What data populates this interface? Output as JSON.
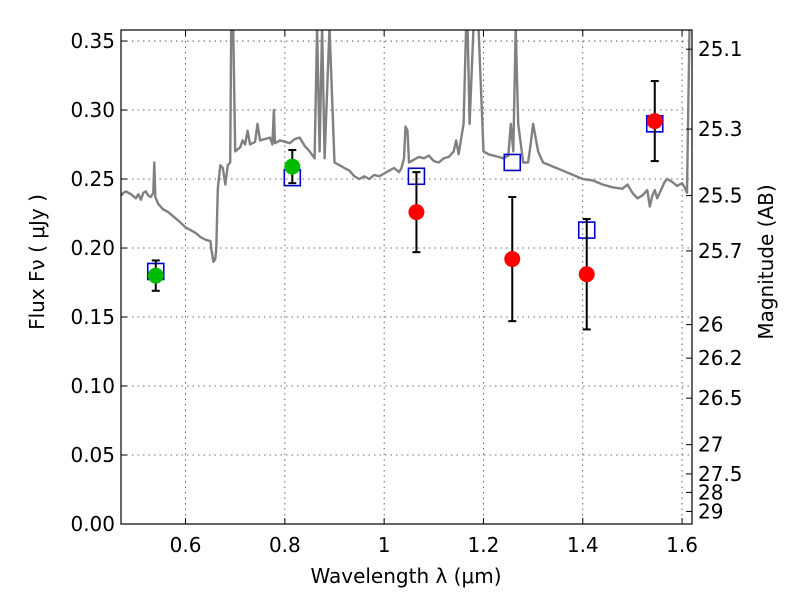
{
  "chart_data": {
    "type": "scatter",
    "xlabel": "Wavelength  λ (μm)",
    "ylabel": "Flux  Fν ( μJy )",
    "ylabel_right": "Magnitude (AB)",
    "xlim": [
      0.47,
      1.62
    ],
    "ylim": [
      0.0,
      0.358
    ],
    "grid": true,
    "x_ticks": [
      {
        "value": 0.6,
        "label": "0.6"
      },
      {
        "value": 0.8,
        "label": "0.8"
      },
      {
        "value": 1.0,
        "label": "1"
      },
      {
        "value": 1.2,
        "label": "1.2"
      },
      {
        "value": 1.4,
        "label": "1.4"
      },
      {
        "value": 1.6,
        "label": "1.6"
      }
    ],
    "y_ticks": [
      {
        "value": 0.0,
        "label": "0.00"
      },
      {
        "value": 0.05,
        "label": "0.05"
      },
      {
        "value": 0.1,
        "label": "0.10"
      },
      {
        "value": 0.15,
        "label": "0.15"
      },
      {
        "value": 0.2,
        "label": "0.20"
      },
      {
        "value": 0.25,
        "label": "0.25"
      },
      {
        "value": 0.3,
        "label": "0.30"
      },
      {
        "value": 0.35,
        "label": "0.35"
      }
    ],
    "right_ticks": [
      {
        "flux": 0.3441,
        "label": "25.1"
      },
      {
        "flux": 0.2862,
        "label": "25.3"
      },
      {
        "flux": 0.238,
        "label": "25.5"
      },
      {
        "flux": 0.1979,
        "label": "25.7"
      },
      {
        "flux": 0.1445,
        "label": "26"
      },
      {
        "flux": 0.1202,
        "label": "26.2"
      },
      {
        "flux": 0.0912,
        "label": "26.5"
      },
      {
        "flux": 0.0575,
        "label": "27"
      },
      {
        "flux": 0.0363,
        "label": "27.5"
      },
      {
        "flux": 0.0229,
        "label": "28"
      },
      {
        "flux": 0.0091,
        "label": "29"
      }
    ],
    "series": [
      {
        "kind": "spectrum",
        "color": "#808080",
        "points": [
          [
            0.47,
            0.238
          ],
          [
            0.475,
            0.24
          ],
          [
            0.48,
            0.241
          ],
          [
            0.49,
            0.239
          ],
          [
            0.5,
            0.236
          ],
          [
            0.505,
            0.239
          ],
          [
            0.51,
            0.235
          ],
          [
            0.515,
            0.24
          ],
          [
            0.52,
            0.241
          ],
          [
            0.525,
            0.238
          ],
          [
            0.53,
            0.237
          ],
          [
            0.535,
            0.24
          ],
          [
            0.537,
            0.262
          ],
          [
            0.539,
            0.237
          ],
          [
            0.545,
            0.232
          ],
          [
            0.555,
            0.228
          ],
          [
            0.565,
            0.226
          ],
          [
            0.575,
            0.223
          ],
          [
            0.585,
            0.22
          ],
          [
            0.6,
            0.215
          ],
          [
            0.61,
            0.213
          ],
          [
            0.62,
            0.211
          ],
          [
            0.63,
            0.208
          ],
          [
            0.64,
            0.206
          ],
          [
            0.65,
            0.205
          ],
          [
            0.652,
            0.199
          ],
          [
            0.656,
            0.19
          ],
          [
            0.66,
            0.192
          ],
          [
            0.662,
            0.2
          ],
          [
            0.665,
            0.243
          ],
          [
            0.67,
            0.26
          ],
          [
            0.675,
            0.258
          ],
          [
            0.68,
            0.246
          ],
          [
            0.685,
            0.26
          ],
          [
            0.69,
            0.262
          ],
          [
            0.692,
            0.36
          ],
          [
            0.696,
            0.36
          ],
          [
            0.7,
            0.27
          ],
          [
            0.71,
            0.273
          ],
          [
            0.715,
            0.278
          ],
          [
            0.72,
            0.275
          ],
          [
            0.725,
            0.285
          ],
          [
            0.73,
            0.275
          ],
          [
            0.74,
            0.277
          ],
          [
            0.745,
            0.29
          ],
          [
            0.75,
            0.278
          ],
          [
            0.76,
            0.279
          ],
          [
            0.77,
            0.28
          ],
          [
            0.775,
            0.275
          ],
          [
            0.778,
            0.3
          ],
          [
            0.78,
            0.276
          ],
          [
            0.79,
            0.278
          ],
          [
            0.8,
            0.277
          ],
          [
            0.81,
            0.276
          ],
          [
            0.82,
            0.279
          ],
          [
            0.83,
            0.28
          ],
          [
            0.84,
            0.274
          ],
          [
            0.85,
            0.27
          ],
          [
            0.86,
            0.265
          ],
          [
            0.865,
            0.36
          ],
          [
            0.87,
            0.27
          ],
          [
            0.875,
            0.36
          ],
          [
            0.88,
            0.265
          ],
          [
            0.89,
            0.36
          ],
          [
            0.9,
            0.262
          ],
          [
            0.91,
            0.26
          ],
          [
            0.92,
            0.258
          ],
          [
            0.93,
            0.256
          ],
          [
            0.94,
            0.252
          ],
          [
            0.95,
            0.25
          ],
          [
            0.96,
            0.252
          ],
          [
            0.97,
            0.25
          ],
          [
            0.98,
            0.253
          ],
          [
            0.99,
            0.252
          ],
          [
            1.0,
            0.254
          ],
          [
            1.01,
            0.256
          ],
          [
            1.02,
            0.258
          ],
          [
            1.03,
            0.255
          ],
          [
            1.035,
            0.258
          ],
          [
            1.04,
            0.265
          ],
          [
            1.043,
            0.288
          ],
          [
            1.047,
            0.285
          ],
          [
            1.05,
            0.262
          ],
          [
            1.06,
            0.264
          ],
          [
            1.07,
            0.266
          ],
          [
            1.08,
            0.265
          ],
          [
            1.09,
            0.267
          ],
          [
            1.1,
            0.263
          ],
          [
            1.11,
            0.262
          ],
          [
            1.12,
            0.265
          ],
          [
            1.13,
            0.266
          ],
          [
            1.14,
            0.27
          ],
          [
            1.145,
            0.278
          ],
          [
            1.15,
            0.268
          ],
          [
            1.16,
            0.29
          ],
          [
            1.165,
            0.36
          ],
          [
            1.168,
            0.36
          ],
          [
            1.172,
            0.29
          ],
          [
            1.18,
            0.36
          ],
          [
            1.19,
            0.36
          ],
          [
            1.2,
            0.27
          ],
          [
            1.21,
            0.268
          ],
          [
            1.22,
            0.267
          ],
          [
            1.23,
            0.266
          ],
          [
            1.24,
            0.265
          ],
          [
            1.25,
            0.267
          ],
          [
            1.255,
            0.29
          ],
          [
            1.26,
            0.27
          ],
          [
            1.265,
            0.36
          ],
          [
            1.27,
            0.29
          ],
          [
            1.28,
            0.262
          ],
          [
            1.29,
            0.262
          ],
          [
            1.295,
            0.275
          ],
          [
            1.3,
            0.29
          ],
          [
            1.31,
            0.27
          ],
          [
            1.32,
            0.262
          ],
          [
            1.34,
            0.259
          ],
          [
            1.36,
            0.256
          ],
          [
            1.38,
            0.253
          ],
          [
            1.4,
            0.25
          ],
          [
            1.42,
            0.249
          ],
          [
            1.44,
            0.246
          ],
          [
            1.46,
            0.244
          ],
          [
            1.48,
            0.243
          ],
          [
            1.49,
            0.246
          ],
          [
            1.5,
            0.24
          ],
          [
            1.51,
            0.236
          ],
          [
            1.52,
            0.238
          ],
          [
            1.53,
            0.242
          ],
          [
            1.535,
            0.23
          ],
          [
            1.54,
            0.238
          ],
          [
            1.545,
            0.242
          ],
          [
            1.55,
            0.236
          ],
          [
            1.56,
            0.244
          ],
          [
            1.565,
            0.248
          ],
          [
            1.57,
            0.25
          ],
          [
            1.58,
            0.248
          ],
          [
            1.59,
            0.245
          ],
          [
            1.6,
            0.247
          ],
          [
            1.605,
            0.244
          ],
          [
            1.61,
            0.24
          ],
          [
            1.615,
            0.36
          ],
          [
            1.62,
            0.36
          ]
        ]
      },
      {
        "kind": "model_boxes",
        "color": "#0000cc",
        "points": [
          [
            0.54,
            0.183
          ],
          [
            0.815,
            0.251
          ],
          [
            1.065,
            0.252
          ],
          [
            1.258,
            0.262
          ],
          [
            1.408,
            0.213
          ],
          [
            1.545,
            0.29
          ]
        ]
      },
      {
        "kind": "data_points",
        "points": [
          {
            "x": 0.54,
            "y": 0.18,
            "err": 0.011,
            "color": "#00bb00"
          },
          {
            "x": 0.815,
            "y": 0.259,
            "err": 0.012,
            "color": "#00bb00"
          },
          {
            "x": 1.065,
            "y": 0.226,
            "err": 0.029,
            "color": "#ff0000"
          },
          {
            "x": 1.258,
            "y": 0.192,
            "err": 0.045,
            "color": "#ff0000"
          },
          {
            "x": 1.408,
            "y": 0.181,
            "err": 0.04,
            "color": "#ff0000"
          },
          {
            "x": 1.545,
            "y": 0.292,
            "err": 0.029,
            "color": "#ff0000"
          }
        ]
      }
    ]
  }
}
